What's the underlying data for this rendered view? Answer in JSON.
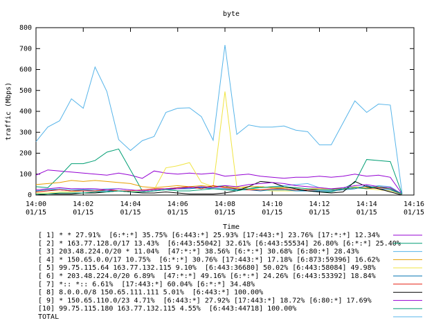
{
  "chart_data": {
    "type": "line",
    "title": "byte",
    "x_label": "Time",
    "y_label": "traffic (Mbps)",
    "x": [
      0,
      0.5,
      1,
      1.5,
      2,
      2.5,
      3,
      3.5,
      4,
      4.5,
      5,
      5.5,
      6,
      6.5,
      7,
      7.5,
      8,
      8.5,
      9,
      9.5,
      10,
      10.5,
      11,
      11.5,
      12,
      12.5,
      13,
      13.5,
      14,
      14.5,
      15,
      15.5
    ],
    "xlim": [
      0,
      16
    ],
    "xticks": [
      {
        "value": 0,
        "label": "14:00\n01/15"
      },
      {
        "value": 2,
        "label": "14:02\n01/15"
      },
      {
        "value": 4,
        "label": "14:04\n01/15"
      },
      {
        "value": 6,
        "label": "14:06\n01/15"
      },
      {
        "value": 8,
        "label": "14:08\n01/15"
      },
      {
        "value": 10,
        "label": "14:10\n01/15"
      },
      {
        "value": 12,
        "label": "14:12\n01/15"
      },
      {
        "value": 14,
        "label": "14:14\n01/15"
      },
      {
        "value": 16,
        "label": "14:16\n01/15"
      }
    ],
    "ylim": [
      0,
      800
    ],
    "yticks": [
      0,
      100,
      200,
      300,
      400,
      500,
      600,
      700,
      800
    ],
    "series": [
      {
        "name": "[ 1] * * 27.91%  [6:*:*] 35.75% [6:443:*] 25.93% [17:443:*] 23.76% [17:*:*] 12.34%",
        "color": "#9400d3",
        "values": [
          95,
          120,
          115,
          110,
          105,
          100,
          95,
          105,
          95,
          80,
          115,
          105,
          100,
          105,
          100,
          105,
          90,
          95,
          100,
          90,
          85,
          80,
          85,
          85,
          90,
          85,
          90,
          100,
          90,
          95,
          85,
          5
        ]
      },
      {
        "name": "[ 2] * 163.77.128.0/17 13.43%  [6:443:55042] 32.61% [6:443:55534] 26.80% [6:*:*] 25.40%",
        "color": "#009e73",
        "values": [
          40,
          35,
          90,
          150,
          150,
          165,
          205,
          220,
          120,
          20,
          25,
          30,
          35,
          40,
          35,
          40,
          45,
          25,
          30,
          40,
          35,
          30,
          25,
          20,
          15,
          15,
          30,
          60,
          170,
          165,
          160,
          5
        ]
      },
      {
        "name": "[ 3] 203.48.224.0/20 * 11.04%  [47:*:*] 38.56% [6:*:*] 30.68% [6:80:*] 28.43%",
        "color": "#56b4e9",
        "values": [
          20,
          25,
          30,
          25,
          30,
          25,
          30,
          30,
          25,
          20,
          25,
          30,
          35,
          35,
          40,
          35,
          40,
          30,
          30,
          35,
          40,
          45,
          50,
          55,
          35,
          30,
          30,
          40,
          35,
          45,
          40,
          5
        ]
      },
      {
        "name": "[ 4] * 150.65.0.0/17 10.75%  [6:*:*] 30.76% [17:443:*] 17.18% [6:873:59396] 16.62%",
        "color": "#e69f00",
        "values": [
          50,
          55,
          60,
          70,
          65,
          70,
          65,
          60,
          55,
          40,
          35,
          40,
          45,
          40,
          45,
          40,
          40,
          35,
          40,
          40,
          35,
          35,
          35,
          30,
          30,
          30,
          30,
          35,
          35,
          40,
          35,
          5
        ]
      },
      {
        "name": "[ 5] 99.75.115.64 163.77.132.115 9.10%  [6:443:36680] 50.02% [6:443:58084] 49.98%",
        "color": "#f0e442",
        "values": [
          10,
          10,
          15,
          15,
          20,
          20,
          25,
          20,
          20,
          20,
          25,
          130,
          140,
          155,
          60,
          40,
          495,
          40,
          30,
          25,
          20,
          20,
          20,
          20,
          20,
          20,
          25,
          40,
          30,
          25,
          20,
          5
        ]
      },
      {
        "name": "[ 6] * 203.48.224.0/20 6.89%  [47:*:*] 49.16% [6:*:*] 24.26% [6:443:53392] 18.84%",
        "color": "#0072b2",
        "values": [
          20,
          25,
          25,
          20,
          25,
          20,
          20,
          20,
          15,
          15,
          20,
          25,
          30,
          30,
          35,
          30,
          30,
          25,
          25,
          20,
          25,
          25,
          20,
          20,
          20,
          20,
          25,
          30,
          45,
          30,
          25,
          5
        ]
      },
      {
        "name": "[ 7] *:: *:: 6.61%  [17:443:*] 60.04% [6:*:*] 34.48%",
        "color": "#e51e10",
        "values": [
          15,
          20,
          25,
          20,
          20,
          20,
          25,
          20,
          20,
          25,
          30,
          30,
          35,
          40,
          30,
          45,
          35,
          30,
          25,
          25,
          30,
          30,
          25,
          25,
          25,
          25,
          30,
          35,
          30,
          35,
          30,
          5
        ]
      },
      {
        "name": "[ 8] 8.0.0.0/8 150.65.111.111 5.01%  [6:443:*] 100.00%",
        "color": "#000000",
        "values": [
          0,
          5,
          5,
          5,
          10,
          10,
          15,
          20,
          15,
          10,
          10,
          15,
          10,
          5,
          5,
          5,
          10,
          20,
          40,
          65,
          60,
          40,
          30,
          20,
          15,
          10,
          15,
          65,
          40,
          30,
          15,
          0
        ]
      },
      {
        "name": "[ 9] * 150.65.110.0/23 4.71%  [6:443:*] 27.92% [17:443:*] 18.72% [6:80:*] 17.69%",
        "color": "#9400d3",
        "values": [
          25,
          30,
          35,
          30,
          30,
          30,
          25,
          30,
          25,
          20,
          25,
          30,
          30,
          35,
          40,
          35,
          45,
          40,
          50,
          55,
          60,
          55,
          45,
          40,
          35,
          30,
          35,
          45,
          50,
          40,
          35,
          5
        ]
      },
      {
        "name": "[10] 99.75.115.180 163.77.132.115 4.55%  [6:443:44718] 100.00%",
        "color": "#009e73",
        "values": [
          5,
          5,
          10,
          10,
          10,
          15,
          15,
          20,
          15,
          15,
          20,
          25,
          20,
          20,
          25,
          30,
          25,
          20,
          30,
          35,
          40,
          40,
          35,
          30,
          25,
          25,
          30,
          35,
          30,
          40,
          30,
          5
        ]
      },
      {
        "name": "TOTAL",
        "color": "#56b4e9",
        "values": [
          255,
          325,
          355,
          460,
          415,
          612,
          495,
          265,
          213,
          260,
          280,
          395,
          415,
          417,
          375,
          262,
          717,
          290,
          335,
          325,
          325,
          330,
          310,
          303,
          240,
          240,
          345,
          450,
          395,
          435,
          430,
          8
        ]
      }
    ]
  }
}
